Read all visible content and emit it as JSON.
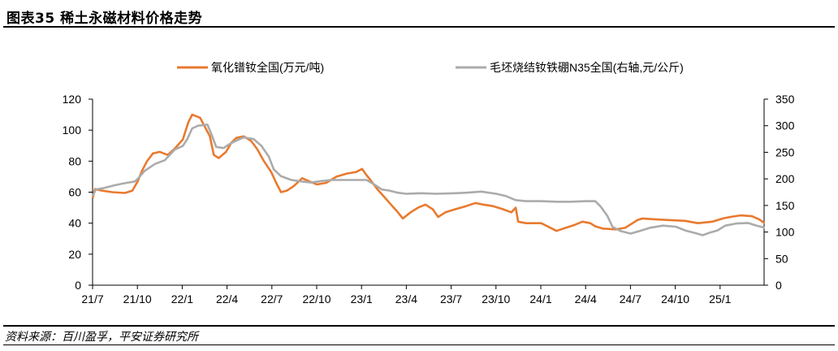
{
  "header": {
    "title": "图表35    稀土永磁材料价格走势"
  },
  "footer": {
    "source": "资料来源：百川盈孚，平安证券研究所"
  },
  "chart_data": {
    "type": "line",
    "x_ticks": [
      "21/7",
      "21/10",
      "22/1",
      "22/4",
      "22/7",
      "22/10",
      "23/1",
      "23/4",
      "23/7",
      "23/10",
      "24/1",
      "24/4",
      "24/7",
      "24/10",
      "25/1"
    ],
    "y_left": {
      "lim": [
        0,
        120
      ],
      "ticks": [
        0,
        20,
        40,
        60,
        80,
        100,
        120
      ]
    },
    "y_right": {
      "lim": [
        0,
        350
      ],
      "ticks": [
        0,
        50,
        100,
        150,
        200,
        250,
        300,
        350
      ]
    },
    "legend_position": "top",
    "grid": false,
    "series": [
      {
        "name": "氧化镨钕全国(万元/吨)",
        "axis": "left",
        "color": "#E87A2F",
        "points": [
          [
            "2021-07-01",
            56
          ],
          [
            "2021-07-06",
            62
          ],
          [
            "2021-07-20",
            61
          ],
          [
            "2021-08-10",
            60
          ],
          [
            "2021-09-05",
            59.5
          ],
          [
            "2021-09-20",
            61
          ],
          [
            "2021-10-01",
            67
          ],
          [
            "2021-10-10",
            74
          ],
          [
            "2021-10-20",
            80
          ],
          [
            "2021-11-01",
            85
          ],
          [
            "2021-11-15",
            86
          ],
          [
            "2021-12-01",
            84
          ],
          [
            "2021-12-15",
            88
          ],
          [
            "2022-01-01",
            94
          ],
          [
            "2022-01-05",
            98
          ],
          [
            "2022-01-12",
            105
          ],
          [
            "2022-01-20",
            110
          ],
          [
            "2022-02-05",
            108
          ],
          [
            "2022-02-15",
            102
          ],
          [
            "2022-02-25",
            96
          ],
          [
            "2022-03-05",
            84
          ],
          [
            "2022-03-15",
            82
          ],
          [
            "2022-03-30",
            86
          ],
          [
            "2022-04-10",
            92
          ],
          [
            "2022-04-20",
            95
          ],
          [
            "2022-05-05",
            96
          ],
          [
            "2022-05-20",
            93
          ],
          [
            "2022-06-01",
            88
          ],
          [
            "2022-06-15",
            80
          ],
          [
            "2022-06-30",
            73
          ],
          [
            "2022-07-10",
            66
          ],
          [
            "2022-07-20",
            60
          ],
          [
            "2022-08-01",
            61
          ],
          [
            "2022-08-15",
            64
          ],
          [
            "2022-09-01",
            69
          ],
          [
            "2022-09-15",
            67
          ],
          [
            "2022-10-01",
            65
          ],
          [
            "2022-10-20",
            66
          ],
          [
            "2022-11-10",
            70
          ],
          [
            "2022-12-01",
            72
          ],
          [
            "2022-12-20",
            73
          ],
          [
            "2023-01-01",
            75
          ],
          [
            "2023-01-10",
            71
          ],
          [
            "2023-01-20",
            67
          ],
          [
            "2023-02-01",
            62
          ],
          [
            "2023-02-15",
            57
          ],
          [
            "2023-03-01",
            52
          ],
          [
            "2023-03-15",
            47
          ],
          [
            "2023-03-25",
            43
          ],
          [
            "2023-04-10",
            47
          ],
          [
            "2023-04-25",
            50
          ],
          [
            "2023-05-10",
            52
          ],
          [
            "2023-05-25",
            49
          ],
          [
            "2023-06-05",
            44
          ],
          [
            "2023-06-20",
            47
          ],
          [
            "2023-07-10",
            49
          ],
          [
            "2023-08-01",
            51
          ],
          [
            "2023-08-20",
            53
          ],
          [
            "2023-09-05",
            52
          ],
          [
            "2023-09-25",
            51
          ],
          [
            "2023-10-15",
            49
          ],
          [
            "2023-11-01",
            47
          ],
          [
            "2023-11-10",
            50
          ],
          [
            "2023-11-15",
            41
          ],
          [
            "2023-12-01",
            40
          ],
          [
            "2024-01-01",
            40
          ],
          [
            "2024-01-20",
            37
          ],
          [
            "2024-02-01",
            35
          ],
          [
            "2024-02-20",
            37
          ],
          [
            "2024-03-10",
            39
          ],
          [
            "2024-03-25",
            41
          ],
          [
            "2024-04-10",
            40
          ],
          [
            "2024-04-20",
            38
          ],
          [
            "2024-05-05",
            36.5
          ],
          [
            "2024-06-01",
            36
          ],
          [
            "2024-06-20",
            37
          ],
          [
            "2024-07-05",
            40
          ],
          [
            "2024-07-15",
            42
          ],
          [
            "2024-07-25",
            43
          ],
          [
            "2024-08-20",
            42.5
          ],
          [
            "2024-09-20",
            42
          ],
          [
            "2024-10-20",
            41.5
          ],
          [
            "2024-11-15",
            40
          ],
          [
            "2024-12-15",
            41
          ],
          [
            "2025-01-05",
            43
          ],
          [
            "2025-01-20",
            44
          ],
          [
            "2025-02-10",
            45
          ],
          [
            "2025-03-05",
            44.5
          ],
          [
            "2025-03-20",
            42.5
          ],
          [
            "2025-03-31",
            40
          ]
        ]
      },
      {
        "name": "毛坯烧结钕铁硼N35全国(右轴,元/公斤)",
        "axis": "right",
        "color": "#ABABAB",
        "points": [
          [
            "2021-07-01",
            168
          ],
          [
            "2021-07-08",
            180
          ],
          [
            "2021-07-25",
            183
          ],
          [
            "2021-08-15",
            188
          ],
          [
            "2021-09-05",
            192
          ],
          [
            "2021-09-25",
            195
          ],
          [
            "2021-10-01",
            200
          ],
          [
            "2021-10-15",
            215
          ],
          [
            "2021-11-05",
            228
          ],
          [
            "2021-11-25",
            235
          ],
          [
            "2021-12-15",
            255
          ],
          [
            "2022-01-01",
            262
          ],
          [
            "2022-01-10",
            275
          ],
          [
            "2022-01-20",
            295
          ],
          [
            "2022-02-01",
            300
          ],
          [
            "2022-02-20",
            302
          ],
          [
            "2022-03-01",
            282
          ],
          [
            "2022-03-10",
            260
          ],
          [
            "2022-03-25",
            258
          ],
          [
            "2022-04-05",
            265
          ],
          [
            "2022-04-20",
            272
          ],
          [
            "2022-05-05",
            278
          ],
          [
            "2022-05-25",
            275
          ],
          [
            "2022-06-10",
            262
          ],
          [
            "2022-06-25",
            242
          ],
          [
            "2022-07-05",
            218
          ],
          [
            "2022-07-20",
            205
          ],
          [
            "2022-08-10",
            198
          ],
          [
            "2022-09-01",
            195
          ],
          [
            "2022-09-20",
            193
          ],
          [
            "2022-10-10",
            196
          ],
          [
            "2022-11-01",
            198
          ],
          [
            "2022-12-01",
            198
          ],
          [
            "2022-12-20",
            198
          ],
          [
            "2023-01-10",
            198
          ],
          [
            "2023-01-25",
            190
          ],
          [
            "2023-02-10",
            180
          ],
          [
            "2023-02-25",
            178
          ],
          [
            "2023-03-15",
            174
          ],
          [
            "2023-04-01",
            172
          ],
          [
            "2023-05-01",
            173
          ],
          [
            "2023-06-01",
            172
          ],
          [
            "2023-07-10",
            173
          ],
          [
            "2023-08-01",
            174
          ],
          [
            "2023-09-01",
            176
          ],
          [
            "2023-10-01",
            172
          ],
          [
            "2023-10-20",
            168
          ],
          [
            "2023-11-10",
            160
          ],
          [
            "2023-12-01",
            158
          ],
          [
            "2024-01-01",
            158
          ],
          [
            "2024-02-01",
            157
          ],
          [
            "2024-03-01",
            157
          ],
          [
            "2024-04-01",
            158
          ],
          [
            "2024-04-20",
            158
          ],
          [
            "2024-05-01",
            148
          ],
          [
            "2024-05-15",
            130
          ],
          [
            "2024-05-25",
            110
          ],
          [
            "2024-06-10",
            102
          ],
          [
            "2024-07-01",
            97
          ],
          [
            "2024-07-20",
            102
          ],
          [
            "2024-08-10",
            108
          ],
          [
            "2024-09-05",
            112
          ],
          [
            "2024-10-01",
            110
          ],
          [
            "2024-10-20",
            103
          ],
          [
            "2024-11-10",
            98
          ],
          [
            "2024-11-25",
            94
          ],
          [
            "2024-12-10",
            99
          ],
          [
            "2024-12-25",
            103
          ],
          [
            "2025-01-10",
            112
          ],
          [
            "2025-02-01",
            116
          ],
          [
            "2025-02-25",
            117
          ],
          [
            "2025-03-15",
            112
          ],
          [
            "2025-03-31",
            108
          ]
        ]
      }
    ]
  }
}
